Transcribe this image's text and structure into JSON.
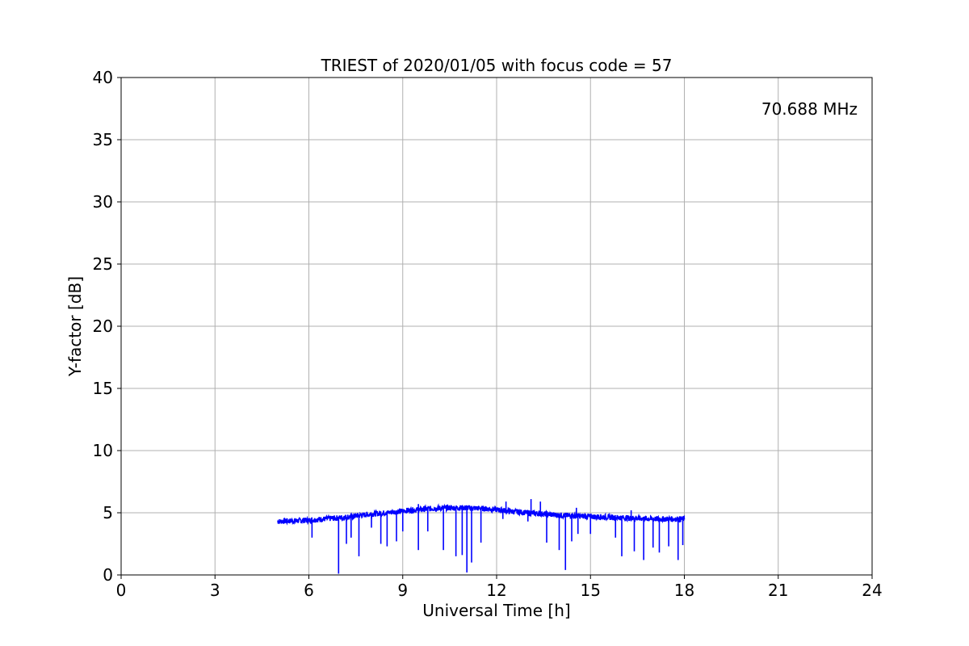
{
  "chart_data": {
    "type": "line",
    "title": "TRIEST of 2020/01/05 with focus code = 57",
    "xlabel": "Universal Time [h]",
    "ylabel": "Y-factor [dB]",
    "xlim": [
      0,
      24
    ],
    "ylim": [
      0,
      40
    ],
    "xticks": [
      0,
      3,
      6,
      9,
      12,
      15,
      18,
      21,
      24
    ],
    "yticks": [
      0,
      5,
      10,
      15,
      20,
      25,
      30,
      35,
      40
    ],
    "grid": true,
    "annotation": {
      "text": "70.688 MHz",
      "color": "#0000ff",
      "placement": "top-right"
    },
    "series": [
      {
        "color": "#0000ff",
        "x": [
          5.0,
          5.5,
          6.0,
          6.5,
          7.0,
          7.5,
          8.0,
          8.5,
          9.0,
          9.5,
          10.0,
          10.5,
          11.0,
          11.5,
          12.0,
          12.5,
          13.0,
          13.5,
          14.0,
          14.5,
          15.0,
          15.5,
          16.0,
          16.5,
          17.0,
          17.5,
          18.0
        ],
        "y": [
          4.3,
          4.35,
          4.4,
          4.5,
          4.6,
          4.75,
          4.9,
          5.0,
          5.15,
          5.25,
          5.35,
          5.4,
          5.4,
          5.35,
          5.25,
          5.1,
          5.0,
          4.9,
          4.8,
          4.75,
          4.7,
          4.65,
          4.6,
          4.55,
          4.5,
          4.5,
          4.5
        ],
        "dips": [
          [
            6.1,
            3.0
          ],
          [
            6.95,
            0.1
          ],
          [
            7.2,
            2.5
          ],
          [
            7.35,
            3.0
          ],
          [
            7.6,
            1.5
          ],
          [
            8.0,
            3.8
          ],
          [
            8.3,
            2.5
          ],
          [
            8.5,
            2.3
          ],
          [
            8.8,
            2.7
          ],
          [
            9.0,
            3.5
          ],
          [
            9.5,
            2.0
          ],
          [
            9.8,
            3.5
          ],
          [
            10.3,
            2.0
          ],
          [
            10.7,
            1.5
          ],
          [
            10.9,
            1.6
          ],
          [
            11.05,
            0.2
          ],
          [
            11.2,
            1.0
          ],
          [
            11.5,
            2.6
          ],
          [
            12.2,
            4.5
          ],
          [
            13.0,
            4.3
          ],
          [
            13.6,
            2.6
          ],
          [
            14.0,
            2.0
          ],
          [
            14.2,
            0.4
          ],
          [
            14.4,
            2.7
          ],
          [
            14.6,
            3.3
          ],
          [
            15.0,
            3.3
          ],
          [
            15.8,
            3.0
          ],
          [
            16.0,
            1.5
          ],
          [
            16.4,
            1.9
          ],
          [
            16.7,
            1.2
          ],
          [
            17.0,
            2.2
          ],
          [
            17.2,
            1.8
          ],
          [
            17.5,
            2.3
          ],
          [
            17.8,
            1.2
          ],
          [
            17.95,
            2.4
          ]
        ],
        "spikes": [
          [
            9.5,
            5.7
          ],
          [
            12.3,
            5.9
          ],
          [
            13.1,
            6.1
          ],
          [
            13.4,
            5.9
          ],
          [
            14.55,
            5.4
          ],
          [
            16.3,
            5.2
          ]
        ]
      }
    ]
  }
}
